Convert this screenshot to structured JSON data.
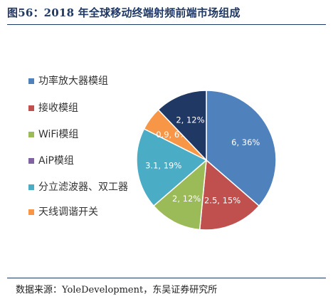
{
  "figure": {
    "title": "图56：2018 年全球移动终端射频前端市场组成",
    "source": "数据来源：YoleDevelopment，东吴证券研究所"
  },
  "chart_data": {
    "type": "pie",
    "title": "",
    "slices": [
      {
        "name": "功率放大器模组",
        "value": 6,
        "percent": 36,
        "label": "6, 36%",
        "color": "#4f81bd"
      },
      {
        "name": "接收模组",
        "value": 2.5,
        "percent": 15,
        "label": "2.5, 15%",
        "color": "#c0504d"
      },
      {
        "name": "WiFi模组",
        "value": 2,
        "percent": 12,
        "label": "2, 12%",
        "color": "#9bbb59"
      },
      {
        "name": "AiP模组",
        "value": 0,
        "percent": 0,
        "label": "",
        "color": "#8064a2"
      },
      {
        "name": "分立滤波器、双工器",
        "value": 3.1,
        "percent": 19,
        "label": "3.1, 19%",
        "color": "#4bacc6"
      },
      {
        "name": "天线调谐开关",
        "value": 0.9,
        "percent": 6,
        "label": "0.9, 6%",
        "color": "#f79646"
      },
      {
        "name": "",
        "value": 2,
        "percent": 12,
        "label": "2, 12%",
        "color": "#1f3864"
      }
    ],
    "legend_position": "left"
  }
}
